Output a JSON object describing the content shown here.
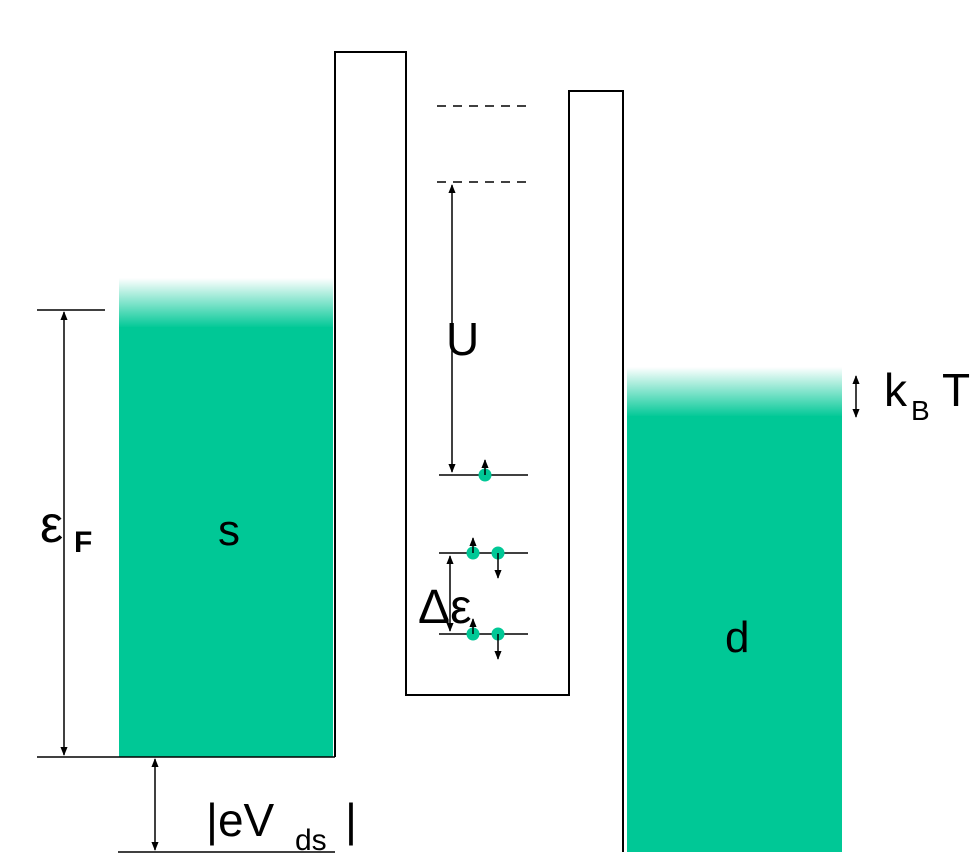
{
  "labels": {
    "source": "s",
    "drain": "d",
    "fermi_symbol": "ε",
    "fermi_sub": "F",
    "charging_energy": "U",
    "thermal_k": "k",
    "thermal_sub": "B",
    "thermal_T": "T",
    "level_spacing": "Δε",
    "bias_open": "|eV",
    "bias_sub": "ds",
    "bias_close": "|"
  },
  "colors": {
    "reservoir_fill": "#00c896",
    "electron": "#00c896",
    "line": "#000000"
  }
}
